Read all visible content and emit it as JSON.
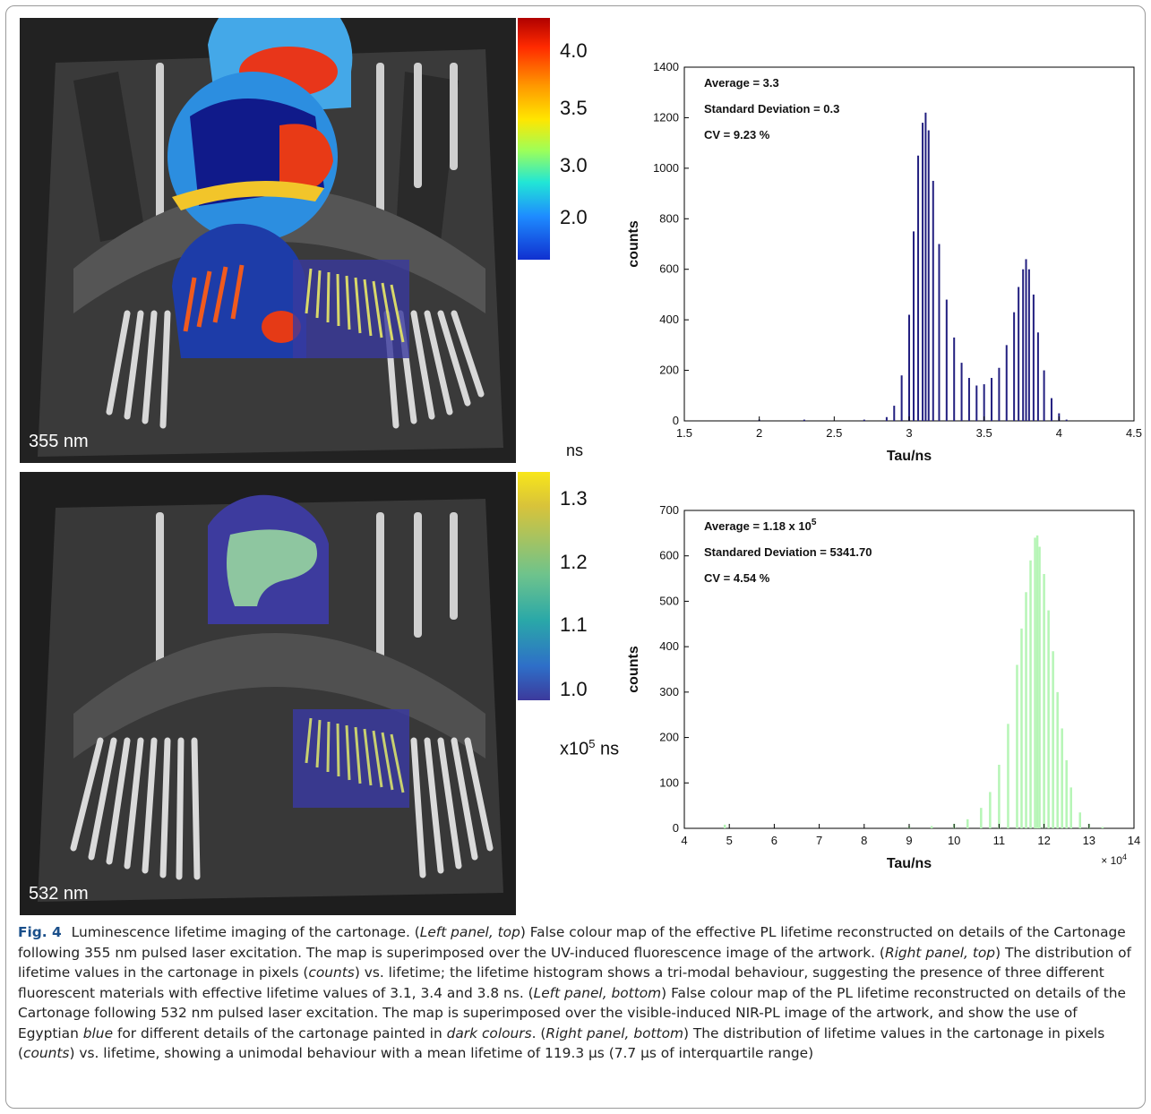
{
  "figure": {
    "top_image_label": "355 nm",
    "bottom_image_label": "532 nm",
    "top_colorbar": {
      "ticks": [
        "4.0",
        "3.5",
        "3.0",
        "2.0"
      ],
      "unit": "ns"
    },
    "bottom_colorbar": {
      "ticks": [
        "1.3",
        "1.2",
        "1.1",
        "1.0"
      ],
      "unit_prefix": "x10",
      "unit_exp": "5",
      "unit_suffix": "ns"
    }
  },
  "chart_data": [
    {
      "type": "bar",
      "series_color": "#232080",
      "xlabel": "Tau/ns",
      "ylabel": "counts",
      "xlim": [
        1.5,
        4.5
      ],
      "ylim": [
        0,
        1400
      ],
      "xticks": [
        "1.5",
        "2",
        "2.5",
        "3",
        "3.5",
        "4",
        "4.5"
      ],
      "yticks": [
        "0",
        "200",
        "400",
        "600",
        "800",
        "1000",
        "1200",
        "1400"
      ],
      "annotations": [
        "Average = 3.3",
        "Standard Deviation = 0.3",
        "CV = 9.23 %"
      ],
      "x": [
        2.0,
        2.3,
        2.7,
        2.85,
        2.9,
        2.95,
        3.0,
        3.03,
        3.06,
        3.09,
        3.11,
        3.13,
        3.16,
        3.2,
        3.25,
        3.3,
        3.35,
        3.4,
        3.45,
        3.5,
        3.55,
        3.6,
        3.65,
        3.7,
        3.73,
        3.76,
        3.78,
        3.8,
        3.83,
        3.86,
        3.9,
        3.95,
        4.0,
        4.05
      ],
      "values": [
        5,
        5,
        5,
        15,
        60,
        180,
        420,
        750,
        1050,
        1180,
        1220,
        1150,
        950,
        700,
        480,
        330,
        230,
        170,
        140,
        145,
        170,
        210,
        300,
        430,
        530,
        600,
        640,
        600,
        500,
        350,
        200,
        90,
        30,
        5
      ]
    },
    {
      "type": "bar",
      "series_color": "#b6f5b6",
      "xlabel": "Tau/ns",
      "ylabel": "counts",
      "x_multiplier": "× 10^4",
      "xlim": [
        4,
        14
      ],
      "ylim": [
        0,
        700
      ],
      "xticks": [
        "4",
        "5",
        "6",
        "7",
        "8",
        "9",
        "10",
        "11",
        "12",
        "13",
        "14"
      ],
      "yticks": [
        "0",
        "100",
        "200",
        "300",
        "400",
        "500",
        "600",
        "700"
      ],
      "annotations": [
        "Average = 1.18 x 10^5",
        "Standared Deviation = 5341.70",
        "CV = 4.54 %"
      ],
      "x": [
        4.9,
        9.0,
        9.5,
        10.0,
        10.3,
        10.6,
        10.8,
        11.0,
        11.2,
        11.4,
        11.5,
        11.6,
        11.7,
        11.8,
        11.85,
        11.9,
        12.0,
        12.1,
        12.2,
        12.3,
        12.4,
        12.5,
        12.6,
        12.8,
        13.0,
        13.3
      ],
      "values": [
        8,
        5,
        5,
        10,
        20,
        45,
        80,
        140,
        230,
        360,
        440,
        520,
        590,
        640,
        645,
        620,
        560,
        480,
        390,
        300,
        220,
        150,
        90,
        35,
        10,
        3
      ]
    }
  ],
  "caption": {
    "fig_no": "Fig. 4",
    "parts": [
      "Luminescence lifetime imaging of the cartonage. (",
      "Left panel, top",
      ") False colour map of the effective PL lifetime reconstructed on details of the Cartonage following 355 nm pulsed laser excitation. The map is superimposed over the UV-induced fluorescence image of the artwork. (",
      "Right panel, top",
      ") The distribution of lifetime values in the cartonage in pixels (",
      "counts",
      ") vs. lifetime; the lifetime histogram shows a tri-modal behaviour, suggesting the presence of three different fluorescent materials with effective lifetime values of 3.1, 3.4 and 3.8 ns. (",
      "Left panel, bottom",
      ") False colour map of the PL lifetime reconstructed on details of the Cartonage following 532 nm pulsed laser excitation. The map is superimposed over the visible-induced NIR-PL image of the artwork, and show the use of Egyptian ",
      "blue",
      " for different details of the cartonage painted in ",
      "dark colours",
      ". (",
      "Right panel, bottom",
      ") The distribution of lifetime values in the cartonage in pixels (",
      "counts",
      ") vs. lifetime, showing a unimodal behaviour with a mean lifetime of 119.3 μs (7.7 μs of interquartile range)"
    ]
  }
}
